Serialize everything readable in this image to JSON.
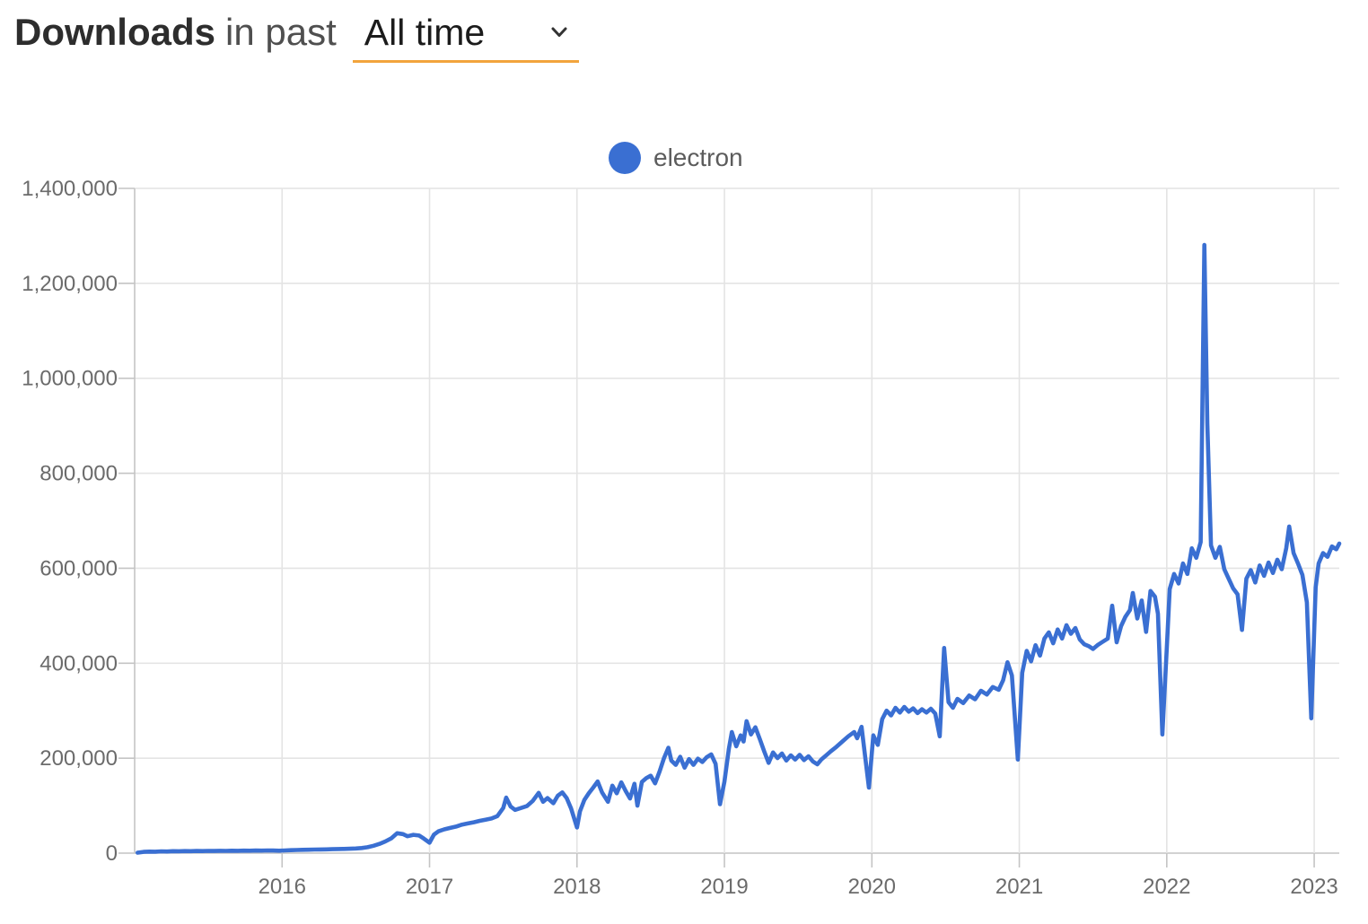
{
  "header": {
    "title_bold": "Downloads",
    "title_rest": "in past",
    "range_selector": {
      "value": "All time",
      "underline_color": "#F2A43C"
    }
  },
  "legend": {
    "items": [
      {
        "label": "electron",
        "color": "#3A6FD2"
      }
    ]
  },
  "chart_data": {
    "type": "line",
    "title": "Downloads in past All time",
    "xlabel": "",
    "ylabel": "",
    "grid": true,
    "legend_position": "top-center",
    "x_range": [
      2015.0,
      2023.17
    ],
    "y_range": [
      0,
      1400000
    ],
    "x_ticks": [
      {
        "label": "2016",
        "year": 2016
      },
      {
        "label": "2017",
        "year": 2017
      },
      {
        "label": "2018",
        "year": 2018
      },
      {
        "label": "2019",
        "year": 2019
      },
      {
        "label": "2020",
        "year": 2020
      },
      {
        "label": "2021",
        "year": 2021
      },
      {
        "label": "2022",
        "year": 2022
      },
      {
        "label": "2023",
        "year": 2023
      }
    ],
    "y_ticks": [
      {
        "label": "0",
        "value": 0
      },
      {
        "label": "200,000",
        "value": 200000
      },
      {
        "label": "400,000",
        "value": 400000
      },
      {
        "label": "600,000",
        "value": 600000
      },
      {
        "label": "800,000",
        "value": 800000
      },
      {
        "label": "1,000,000",
        "value": 1000000
      },
      {
        "label": "1,200,000",
        "value": 1200000
      },
      {
        "label": "1,400,000",
        "value": 1400000
      }
    ],
    "series": [
      {
        "name": "electron",
        "color": "#3A6FD2",
        "points": [
          [
            2015.02,
            900
          ],
          [
            2015.06,
            2600
          ],
          [
            2015.1,
            3200
          ],
          [
            2015.14,
            3000
          ],
          [
            2015.18,
            3700
          ],
          [
            2015.22,
            3400
          ],
          [
            2015.26,
            4100
          ],
          [
            2015.3,
            3900
          ],
          [
            2015.34,
            4400
          ],
          [
            2015.38,
            4200
          ],
          [
            2015.42,
            4600
          ],
          [
            2015.46,
            4400
          ],
          [
            2015.5,
            4800
          ],
          [
            2015.54,
            4600
          ],
          [
            2015.58,
            5000
          ],
          [
            2015.62,
            4800
          ],
          [
            2015.66,
            5100
          ],
          [
            2015.7,
            4900
          ],
          [
            2015.74,
            5300
          ],
          [
            2015.78,
            5100
          ],
          [
            2015.82,
            5500
          ],
          [
            2015.86,
            5300
          ],
          [
            2015.9,
            5700
          ],
          [
            2015.94,
            5400
          ],
          [
            2015.98,
            5100
          ],
          [
            2016.02,
            5600
          ],
          [
            2016.06,
            6200
          ],
          [
            2016.1,
            6600
          ],
          [
            2016.14,
            7000
          ],
          [
            2016.18,
            7200
          ],
          [
            2016.22,
            7500
          ],
          [
            2016.26,
            7700
          ],
          [
            2016.3,
            8000
          ],
          [
            2016.34,
            8300
          ],
          [
            2016.38,
            8600
          ],
          [
            2016.42,
            8900
          ],
          [
            2016.46,
            9300
          ],
          [
            2016.5,
            9800
          ],
          [
            2016.54,
            10800
          ],
          [
            2016.58,
            12500
          ],
          [
            2016.62,
            15500
          ],
          [
            2016.66,
            19500
          ],
          [
            2016.7,
            24500
          ],
          [
            2016.74,
            31000
          ],
          [
            2016.78,
            42000
          ],
          [
            2016.82,
            40000
          ],
          [
            2016.85,
            35500
          ],
          [
            2016.89,
            38500
          ],
          [
            2016.93,
            37000
          ],
          [
            2016.96,
            31000
          ],
          [
            2017.0,
            22000
          ],
          [
            2017.03,
            39000
          ],
          [
            2017.06,
            46000
          ],
          [
            2017.1,
            50000
          ],
          [
            2017.14,
            53000
          ],
          [
            2017.18,
            56000
          ],
          [
            2017.22,
            60000
          ],
          [
            2017.26,
            62500
          ],
          [
            2017.3,
            65000
          ],
          [
            2017.34,
            68000
          ],
          [
            2017.38,
            70500
          ],
          [
            2017.42,
            73000
          ],
          [
            2017.46,
            78000
          ],
          [
            2017.5,
            95000
          ],
          [
            2017.52,
            117000
          ],
          [
            2017.55,
            98000
          ],
          [
            2017.58,
            91000
          ],
          [
            2017.62,
            95000
          ],
          [
            2017.66,
            99000
          ],
          [
            2017.7,
            110000
          ],
          [
            2017.74,
            127000
          ],
          [
            2017.77,
            108000
          ],
          [
            2017.8,
            116000
          ],
          [
            2017.84,
            105000
          ],
          [
            2017.87,
            121000
          ],
          [
            2017.9,
            128000
          ],
          [
            2017.93,
            116000
          ],
          [
            2017.96,
            94000
          ],
          [
            2018.0,
            54000
          ],
          [
            2018.02,
            88000
          ],
          [
            2018.05,
            112000
          ],
          [
            2018.08,
            126000
          ],
          [
            2018.11,
            138000
          ],
          [
            2018.14,
            151000
          ],
          [
            2018.17,
            128000
          ],
          [
            2018.21,
            108000
          ],
          [
            2018.24,
            142000
          ],
          [
            2018.27,
            126000
          ],
          [
            2018.3,
            149000
          ],
          [
            2018.33,
            131000
          ],
          [
            2018.36,
            115000
          ],
          [
            2018.39,
            146000
          ],
          [
            2018.41,
            100000
          ],
          [
            2018.44,
            150000
          ],
          [
            2018.47,
            158000
          ],
          [
            2018.5,
            163000
          ],
          [
            2018.53,
            147000
          ],
          [
            2018.56,
            172000
          ],
          [
            2018.59,
            200000
          ],
          [
            2018.62,
            222000
          ],
          [
            2018.64,
            195000
          ],
          [
            2018.67,
            186000
          ],
          [
            2018.7,
            203000
          ],
          [
            2018.73,
            180000
          ],
          [
            2018.76,
            198000
          ],
          [
            2018.79,
            186000
          ],
          [
            2018.82,
            199000
          ],
          [
            2018.85,
            192000
          ],
          [
            2018.88,
            202000
          ],
          [
            2018.91,
            208000
          ],
          [
            2018.94,
            188000
          ],
          [
            2018.97,
            103000
          ],
          [
            2019.0,
            150000
          ],
          [
            2019.03,
            220000
          ],
          [
            2019.05,
            255000
          ],
          [
            2019.08,
            225000
          ],
          [
            2019.11,
            248000
          ],
          [
            2019.13,
            235000
          ],
          [
            2019.15,
            278000
          ],
          [
            2019.18,
            250000
          ],
          [
            2019.21,
            265000
          ],
          [
            2019.24,
            240000
          ],
          [
            2019.27,
            214000
          ],
          [
            2019.3,
            190000
          ],
          [
            2019.33,
            212000
          ],
          [
            2019.36,
            200000
          ],
          [
            2019.39,
            210000
          ],
          [
            2019.42,
            195000
          ],
          [
            2019.45,
            206000
          ],
          [
            2019.48,
            197000
          ],
          [
            2019.51,
            207000
          ],
          [
            2019.54,
            196000
          ],
          [
            2019.57,
            204000
          ],
          [
            2019.6,
            193000
          ],
          [
            2019.63,
            187000
          ],
          [
            2019.66,
            198000
          ],
          [
            2019.69,
            206000
          ],
          [
            2019.72,
            214000
          ],
          [
            2019.76,
            224000
          ],
          [
            2019.8,
            235000
          ],
          [
            2019.84,
            246000
          ],
          [
            2019.88,
            255000
          ],
          [
            2019.9,
            242000
          ],
          [
            2019.93,
            266000
          ],
          [
            2019.98,
            138000
          ],
          [
            2020.01,
            248000
          ],
          [
            2020.04,
            228000
          ],
          [
            2020.07,
            282000
          ],
          [
            2020.1,
            300000
          ],
          [
            2020.13,
            290000
          ],
          [
            2020.16,
            306000
          ],
          [
            2020.19,
            296000
          ],
          [
            2020.22,
            308000
          ],
          [
            2020.25,
            298000
          ],
          [
            2020.28,
            305000
          ],
          [
            2020.31,
            295000
          ],
          [
            2020.34,
            303000
          ],
          [
            2020.37,
            296000
          ],
          [
            2020.4,
            304000
          ],
          [
            2020.43,
            294000
          ],
          [
            2020.46,
            246000
          ],
          [
            2020.49,
            432000
          ],
          [
            2020.52,
            318000
          ],
          [
            2020.55,
            306000
          ],
          [
            2020.58,
            325000
          ],
          [
            2020.62,
            316000
          ],
          [
            2020.66,
            332000
          ],
          [
            2020.7,
            324000
          ],
          [
            2020.74,
            342000
          ],
          [
            2020.78,
            334000
          ],
          [
            2020.82,
            350000
          ],
          [
            2020.86,
            344000
          ],
          [
            2020.89,
            364000
          ],
          [
            2020.92,
            402000
          ],
          [
            2020.95,
            374000
          ],
          [
            2020.99,
            197000
          ],
          [
            2021.02,
            380000
          ],
          [
            2021.05,
            426000
          ],
          [
            2021.08,
            404000
          ],
          [
            2021.11,
            438000
          ],
          [
            2021.14,
            416000
          ],
          [
            2021.17,
            452000
          ],
          [
            2021.2,
            465000
          ],
          [
            2021.23,
            442000
          ],
          [
            2021.26,
            471000
          ],
          [
            2021.29,
            452000
          ],
          [
            2021.32,
            480000
          ],
          [
            2021.35,
            462000
          ],
          [
            2021.38,
            474000
          ],
          [
            2021.41,
            450000
          ],
          [
            2021.44,
            440000
          ],
          [
            2021.47,
            436000
          ],
          [
            2021.5,
            430000
          ],
          [
            2021.53,
            438000
          ],
          [
            2021.56,
            444000
          ],
          [
            2021.6,
            452000
          ],
          [
            2021.63,
            521000
          ],
          [
            2021.66,
            444000
          ],
          [
            2021.69,
            478000
          ],
          [
            2021.72,
            498000
          ],
          [
            2021.75,
            512000
          ],
          [
            2021.77,
            548000
          ],
          [
            2021.8,
            494000
          ],
          [
            2021.83,
            532000
          ],
          [
            2021.86,
            466000
          ],
          [
            2021.89,
            552000
          ],
          [
            2021.92,
            540000
          ],
          [
            2021.94,
            504000
          ],
          [
            2021.97,
            250000
          ],
          [
            2022.0,
            430000
          ],
          [
            2022.02,
            556000
          ],
          [
            2022.05,
            588000
          ],
          [
            2022.08,
            568000
          ],
          [
            2022.11,
            610000
          ],
          [
            2022.14,
            588000
          ],
          [
            2022.17,
            642000
          ],
          [
            2022.2,
            622000
          ],
          [
            2022.23,
            655000
          ],
          [
            2022.255,
            1281000
          ],
          [
            2022.275,
            905000
          ],
          [
            2022.3,
            648000
          ],
          [
            2022.33,
            622000
          ],
          [
            2022.36,
            645000
          ],
          [
            2022.39,
            598000
          ],
          [
            2022.42,
            578000
          ],
          [
            2022.45,
            558000
          ],
          [
            2022.48,
            545000
          ],
          [
            2022.51,
            470000
          ],
          [
            2022.54,
            578000
          ],
          [
            2022.57,
            596000
          ],
          [
            2022.6,
            570000
          ],
          [
            2022.63,
            606000
          ],
          [
            2022.66,
            584000
          ],
          [
            2022.69,
            612000
          ],
          [
            2022.72,
            590000
          ],
          [
            2022.75,
            618000
          ],
          [
            2022.78,
            598000
          ],
          [
            2022.81,
            642000
          ],
          [
            2022.83,
            688000
          ],
          [
            2022.86,
            632000
          ],
          [
            2022.89,
            610000
          ],
          [
            2022.92,
            586000
          ],
          [
            2022.95,
            528000
          ],
          [
            2022.98,
            284000
          ],
          [
            2023.01,
            560000
          ],
          [
            2023.03,
            610000
          ],
          [
            2023.06,
            632000
          ],
          [
            2023.09,
            624000
          ],
          [
            2023.12,
            646000
          ],
          [
            2023.15,
            640000
          ],
          [
            2023.17,
            652000
          ]
        ]
      }
    ]
  },
  "style": {
    "grid_color": "#e4e4e4",
    "axis_color": "#c4c4c4",
    "tick_label_color": "#6b6b6b"
  }
}
